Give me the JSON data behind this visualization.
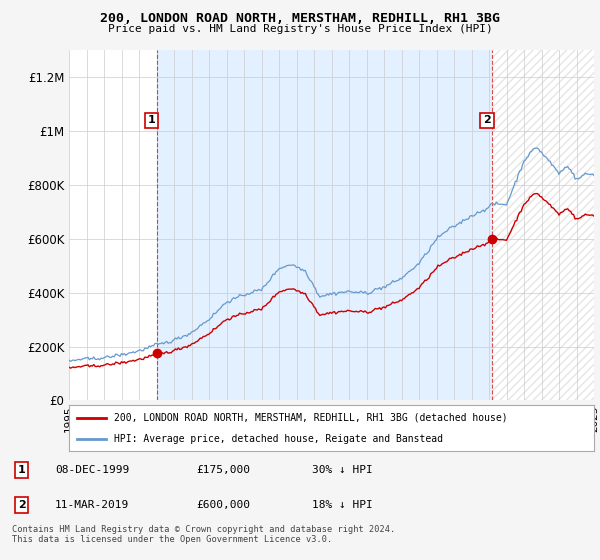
{
  "title": "200, LONDON ROAD NORTH, MERSTHAM, REDHILL, RH1 3BG",
  "subtitle": "Price paid vs. HM Land Registry's House Price Index (HPI)",
  "ylim": [
    0,
    1300000
  ],
  "yticks": [
    0,
    200000,
    400000,
    600000,
    800000,
    1000000,
    1200000
  ],
  "ytick_labels": [
    "£0",
    "£200K",
    "£400K",
    "£600K",
    "£800K",
    "£1M",
    "£1.2M"
  ],
  "sale1_year": 2000.0,
  "sale1_price": 175000,
  "sale2_year": 2019.19,
  "sale2_price": 600000,
  "line_color_property": "#cc0000",
  "line_color_hpi": "#6699cc",
  "fill_color": "#ddeeff",
  "hatch_color": "#cccccc",
  "legend_property": "200, LONDON ROAD NORTH, MERSTHAM, REDHILL, RH1 3BG (detached house)",
  "legend_hpi": "HPI: Average price, detached house, Reigate and Banstead",
  "footer": "Contains HM Land Registry data © Crown copyright and database right 2024.\nThis data is licensed under the Open Government Licence v3.0.",
  "xmin": 1995.0,
  "xmax": 2025.0
}
